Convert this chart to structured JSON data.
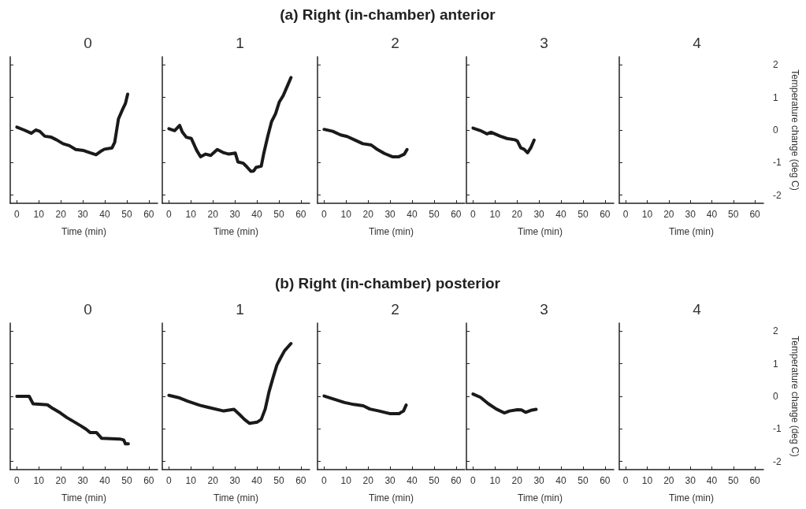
{
  "chart_data": [
    {
      "type": "line",
      "title": "0",
      "xlabel": "Time (min)",
      "annotations": [
        "(a) Right (in-chamber) anterior"
      ],
      "color": "#1a1a1a",
      "marker": "none",
      "line_style": "solid",
      "grid": false,
      "tick_labels": "x",
      "xlim": [
        -3,
        64
      ],
      "xticks": [
        0,
        10,
        20,
        30,
        40,
        50,
        60
      ],
      "ylim": [
        -2.25,
        2.25
      ],
      "yticks": [
        {
          "value": -2,
          "label": null
        },
        {
          "value": -1,
          "label": null
        },
        {
          "value": 0,
          "label": null
        },
        {
          "value": 1,
          "label": null
        },
        {
          "value": 2,
          "label": null
        }
      ],
      "x": [
        0,
        3.3,
        6.6,
        8.6,
        10.4,
        12.7,
        15.6,
        18,
        21,
        23.9,
        26.8,
        30.4,
        33.3,
        36,
        38,
        39.8,
        43.3,
        44.5,
        46.2,
        48,
        49.4,
        50.4
      ],
      "values": [
        0.09,
        0,
        -0.1,
        0,
        -0.04,
        -0.19,
        -0.22,
        -0.3,
        -0.42,
        -0.48,
        -0.6,
        -0.63,
        -0.7,
        -0.76,
        -0.66,
        -0.59,
        -0.55,
        -0.38,
        0.34,
        0.62,
        0.82,
        1.1
      ]
    },
    {
      "type": "line",
      "title": "1",
      "xlabel": "Time (min)",
      "color": "#1a1a1a",
      "marker": "none",
      "line_style": "solid",
      "grid": false,
      "tick_labels": "x",
      "xlim": [
        -3,
        64
      ],
      "xticks": [
        0,
        10,
        20,
        30,
        40,
        50,
        60
      ],
      "ylim": [
        -2.25,
        2.25
      ],
      "yticks": [
        {
          "value": -2,
          "label": null
        },
        {
          "value": -1,
          "label": null
        },
        {
          "value": 0,
          "label": null
        },
        {
          "value": 1,
          "label": null
        },
        {
          "value": 2,
          "label": null
        }
      ],
      "x": [
        0,
        2.6,
        4.9,
        6.1,
        7.9,
        10.2,
        12.6,
        14.4,
        16.7,
        19,
        22,
        25,
        27.3,
        30.2,
        31.4,
        33.8,
        35,
        37.3,
        38.5,
        39.6,
        42,
        43.2,
        45,
        46.7,
        48.5,
        50.2,
        52,
        53.8,
        55.5
      ],
      "values": [
        0.04,
        -0.02,
        0.14,
        -0.06,
        -0.22,
        -0.26,
        -0.62,
        -0.82,
        -0.74,
        -0.78,
        -0.6,
        -0.7,
        -0.74,
        -0.71,
        -0.98,
        -1.02,
        -1.1,
        -1.27,
        -1.26,
        -1.15,
        -1.11,
        -0.7,
        -0.18,
        0.26,
        0.5,
        0.86,
        1.06,
        1.34,
        1.61
      ]
    },
    {
      "type": "line",
      "title": "2",
      "xlabel": "Time (min)",
      "color": "#1a1a1a",
      "marker": "none",
      "line_style": "solid",
      "grid": false,
      "tick_labels": "x",
      "xlim": [
        -3,
        64
      ],
      "xticks": [
        0,
        10,
        20,
        30,
        40,
        50,
        60
      ],
      "ylim": [
        -2.25,
        2.25
      ],
      "yticks": [
        {
          "value": -2,
          "label": null
        },
        {
          "value": -1,
          "label": null
        },
        {
          "value": 0,
          "label": null
        },
        {
          "value": 1,
          "label": null
        },
        {
          "value": 2,
          "label": null
        }
      ],
      "x": [
        0,
        3.9,
        7.5,
        10.5,
        14.1,
        17.6,
        21.4,
        23.8,
        27.4,
        31,
        34,
        36.5,
        37.7
      ],
      "values": [
        0.02,
        -0.04,
        -0.15,
        -0.2,
        -0.31,
        -0.42,
        -0.46,
        -0.58,
        -0.72,
        -0.82,
        -0.82,
        -0.74,
        -0.6
      ]
    },
    {
      "type": "line",
      "title": "3",
      "xlabel": "Time (min)",
      "color": "#1a1a1a",
      "marker": "none",
      "line_style": "solid",
      "grid": false,
      "tick_labels": "x",
      "xlim": [
        -3,
        64
      ],
      "xticks": [
        0,
        10,
        20,
        30,
        40,
        50,
        60
      ],
      "ylim": [
        -2.25,
        2.25
      ],
      "yticks": [
        {
          "value": -2,
          "label": null
        },
        {
          "value": -1,
          "label": null
        },
        {
          "value": 0,
          "label": null
        },
        {
          "value": 1,
          "label": null
        },
        {
          "value": 2,
          "label": null
        }
      ],
      "x": [
        0,
        3.4,
        6.4,
        8.2,
        12.4,
        15.4,
        19,
        20.2,
        21.7,
        23.2,
        24.8,
        26.3,
        27.8
      ],
      "values": [
        0.06,
        -0.02,
        -0.12,
        -0.07,
        -0.19,
        -0.26,
        -0.3,
        -0.34,
        -0.55,
        -0.59,
        -0.7,
        -0.54,
        -0.31
      ]
    },
    {
      "type": "line",
      "title": "4",
      "xlabel": "Time (min)",
      "ylabel": "Temperature change (deg C)",
      "color": "#1a1a1a",
      "marker": "none",
      "line_style": "solid",
      "grid": false,
      "xlim": [
        -3,
        64
      ],
      "xticks": [
        0,
        10,
        20,
        30,
        40,
        50,
        60
      ],
      "ylim": [
        -2.25,
        2.25
      ],
      "yticks": [
        -2,
        -1,
        0,
        1,
        2
      ],
      "tick_labels": true
    },
    {
      "type": "line",
      "title": "0",
      "xlabel": "Time (min)",
      "annotations": [
        "(b) Right (in-chamber) posterior"
      ],
      "color": "#1a1a1a",
      "marker": "none",
      "line_style": "solid",
      "grid": false,
      "tick_labels": "x",
      "xlim": [
        -3,
        64
      ],
      "xticks": [
        0,
        10,
        20,
        30,
        40,
        50,
        60
      ],
      "ylim": [
        -2.25,
        2.25
      ],
      "yticks": [
        {
          "value": -2,
          "label": null
        },
        {
          "value": -1,
          "label": null
        },
        {
          "value": 0,
          "label": null
        },
        {
          "value": 1,
          "label": null
        },
        {
          "value": 2,
          "label": null
        }
      ],
      "x": [
        0,
        5.6,
        7.4,
        13.9,
        16.3,
        19.8,
        22.7,
        26.2,
        29.2,
        31.5,
        33.3,
        36.2,
        38.6,
        46.8,
        48.6,
        49.4,
        50.7
      ],
      "values": [
        0,
        0,
        -0.23,
        -0.26,
        -0.37,
        -0.51,
        -0.65,
        -0.79,
        -0.91,
        -1.01,
        -1.11,
        -1.11,
        -1.29,
        -1.31,
        -1.34,
        -1.46,
        -1.46
      ]
    },
    {
      "type": "line",
      "title": "1",
      "xlabel": "Time (min)",
      "color": "#1a1a1a",
      "marker": "none",
      "line_style": "solid",
      "grid": false,
      "tick_labels": "x",
      "xlim": [
        -3,
        64
      ],
      "xticks": [
        0,
        10,
        20,
        30,
        40,
        50,
        60
      ],
      "ylim": [
        -2.25,
        2.25
      ],
      "yticks": [
        {
          "value": -2,
          "label": null
        },
        {
          "value": -1,
          "label": null
        },
        {
          "value": 0,
          "label": null
        },
        {
          "value": 1,
          "label": null
        },
        {
          "value": 2,
          "label": null
        }
      ],
      "x": [
        0,
        4.9,
        8.5,
        13.8,
        17.9,
        24.9,
        29.6,
        32,
        34.4,
        36.7,
        40.2,
        42,
        43.8,
        45.5,
        47.3,
        49.1,
        50.8,
        52.6,
        55.5
      ],
      "values": [
        0.03,
        -0.05,
        -0.15,
        -0.27,
        -0.34,
        -0.45,
        -0.4,
        -0.55,
        -0.71,
        -0.83,
        -0.79,
        -0.71,
        -0.39,
        0.13,
        0.56,
        0.96,
        1.18,
        1.4,
        1.62
      ]
    },
    {
      "type": "line",
      "title": "2",
      "xlabel": "Time (min)",
      "color": "#1a1a1a",
      "marker": "none",
      "line_style": "solid",
      "grid": false,
      "tick_labels": "x",
      "xlim": [
        -3,
        64
      ],
      "xticks": [
        0,
        10,
        20,
        30,
        40,
        50,
        60
      ],
      "ylim": [
        -2.25,
        2.25
      ],
      "yticks": [
        {
          "value": -2,
          "label": null
        },
        {
          "value": -1,
          "label": null
        },
        {
          "value": 0,
          "label": null
        },
        {
          "value": 1,
          "label": null
        },
        {
          "value": 2,
          "label": null
        }
      ],
      "x": [
        0,
        4.5,
        9.3,
        13.5,
        17.8,
        20.8,
        25,
        29.8,
        34.1,
        36.1,
        37.3
      ],
      "values": [
        0.01,
        -0.09,
        -0.19,
        -0.25,
        -0.29,
        -0.39,
        -0.45,
        -0.53,
        -0.53,
        -0.45,
        -0.27
      ]
    },
    {
      "type": "line",
      "title": "3",
      "xlabel": "Time (min)",
      "color": "#1a1a1a",
      "marker": "none",
      "line_style": "solid",
      "grid": false,
      "tick_labels": "x",
      "xlim": [
        -3,
        64
      ],
      "xticks": [
        0,
        10,
        20,
        30,
        40,
        50,
        60
      ],
      "ylim": [
        -2.25,
        2.25
      ],
      "yticks": [
        {
          "value": -2,
          "label": null
        },
        {
          "value": -1,
          "label": null
        },
        {
          "value": 0,
          "label": null
        },
        {
          "value": 1,
          "label": null
        },
        {
          "value": 2,
          "label": null
        }
      ],
      "x": [
        0,
        3.4,
        7,
        10.6,
        14.2,
        16.6,
        20.2,
        22,
        23.9,
        26.3,
        28.7
      ],
      "values": [
        0.07,
        -0.03,
        -0.23,
        -0.39,
        -0.51,
        -0.45,
        -0.41,
        -0.42,
        -0.49,
        -0.43,
        -0.4
      ]
    },
    {
      "type": "line",
      "title": "4",
      "xlabel": "Time (min)",
      "ylabel": "Temperature change (deg C)",
      "color": "#1a1a1a",
      "marker": "none",
      "line_style": "solid",
      "grid": false,
      "xlim": [
        -3,
        64
      ],
      "xticks": [
        0,
        10,
        20,
        30,
        40,
        50,
        60
      ],
      "ylim": [
        -2.25,
        2.25
      ],
      "yticks": [
        -2,
        -1,
        0,
        1,
        2
      ],
      "tick_labels": true
    }
  ]
}
